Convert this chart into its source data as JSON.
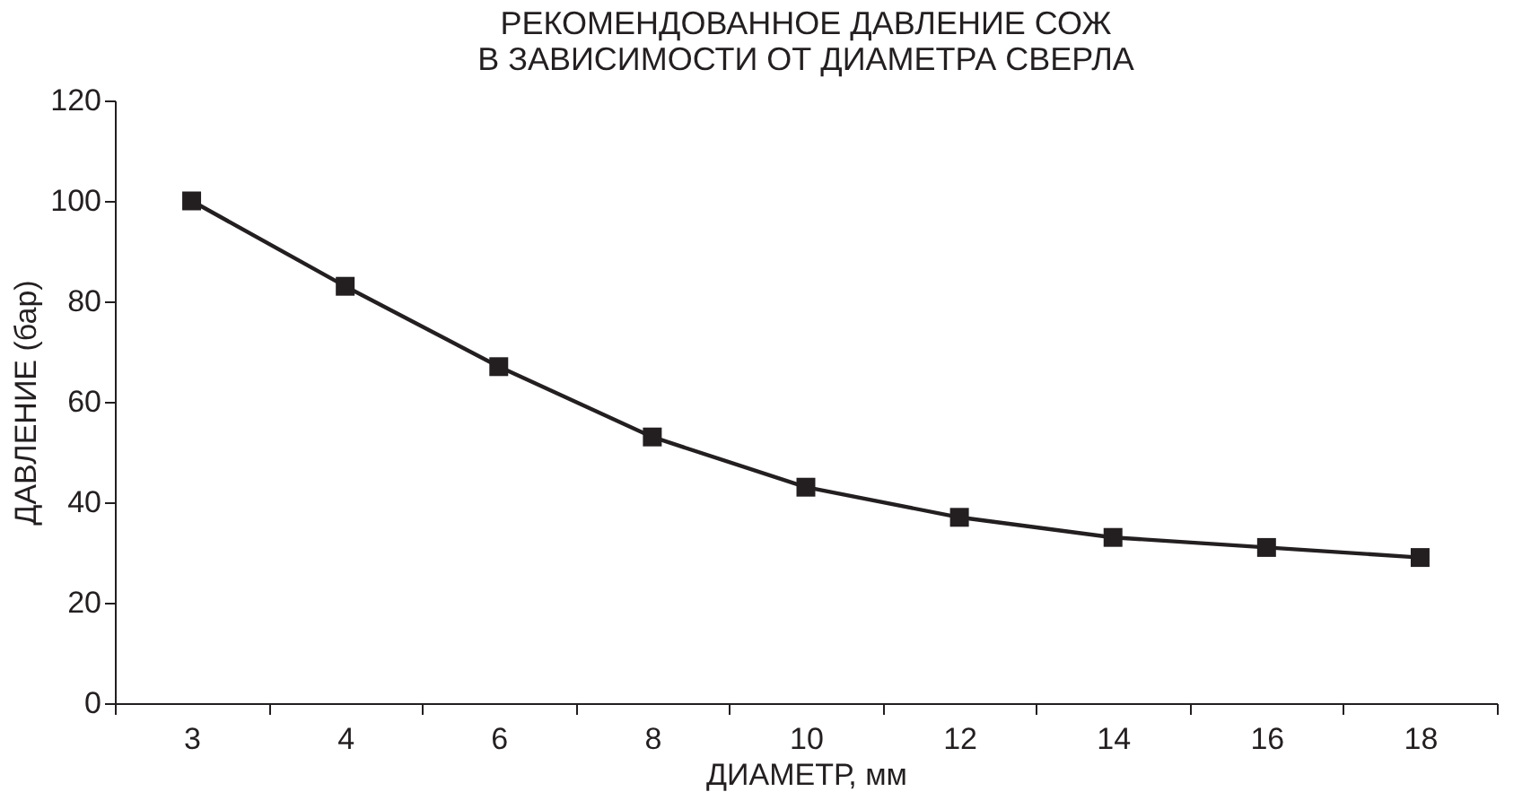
{
  "chart_data": {
    "type": "line",
    "title": [
      "РЕКОМЕНДОВАННОЕ ДАВЛЕНИЕ СОЖ",
      "В ЗАВИСИМОСТИ ОТ ДИАМЕТРА СВЕРЛА"
    ],
    "xlabel": "ДИАМЕТР, мм",
    "ylabel": "ДАВЛЕНИЕ (бар)",
    "categories": [
      "3",
      "4",
      "6",
      "8",
      "10",
      "12",
      "14",
      "16",
      "18"
    ],
    "series": [
      {
        "color": "#231f20",
        "values": [
          100,
          83,
          67,
          53,
          43,
          37,
          33,
          31,
          29
        ]
      }
    ],
    "ylim": [
      0,
      120
    ],
    "yticks": [
      0,
      20,
      40,
      60,
      80,
      100,
      120
    ],
    "marker": "square",
    "line_style": "solid",
    "grid": false
  }
}
